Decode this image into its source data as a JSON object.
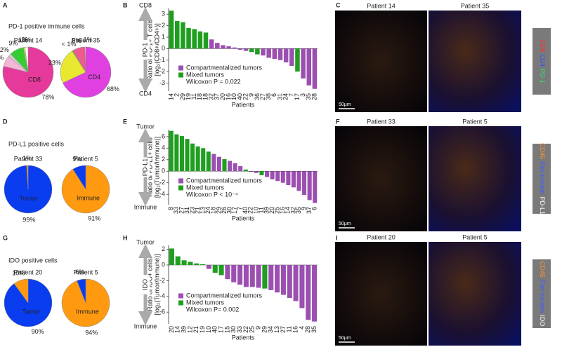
{
  "figure": {
    "panels": [
      "A",
      "B",
      "C",
      "D",
      "E",
      "F",
      "G",
      "H",
      "I"
    ],
    "row_titles": [
      "PD-1 positive immune cells",
      "PD-L1 positive cells",
      "IDO positive cells"
    ]
  },
  "images": [
    {
      "titles": [
        "Patient 14",
        "Patient 35"
      ],
      "scale": "50μm",
      "stains": [
        {
          "text": "CD8",
          "color": "#ff3030"
        },
        {
          "text": "CD4",
          "color": "#3050ff"
        },
        {
          "text": "PD-1",
          "color": "#30e070"
        }
      ]
    },
    {
      "titles": [
        "Patient 33",
        "Patient 5"
      ],
      "scale": "50μm",
      "stains": [
        {
          "text": "CD45",
          "color": "#ff9030"
        },
        {
          "text": "Pan-Keratin",
          "color": "#4060ff"
        },
        {
          "text": "PD-L1",
          "color": "#ffffff"
        }
      ]
    },
    {
      "titles": [
        "Patient 20",
        "Patient 5"
      ],
      "scale": "50μm",
      "stains": [
        {
          "text": "CD45",
          "color": "#ff9030"
        },
        {
          "text": "Pan-Keratin",
          "color": "#4060ff"
        },
        {
          "text": "IDO",
          "color": "#ffffff"
        }
      ]
    }
  ],
  "chart_data": [
    {
      "type": "pie",
      "title": "Patient 14",
      "categories": [
        "CD8",
        null,
        null,
        null,
        null,
        null
      ],
      "values": [
        78,
        7,
        2,
        9,
        1,
        2
      ],
      "value_labels": [
        "78%",
        "7%",
        "2%",
        "9%",
        "1%",
        "2%"
      ],
      "colors": [
        "#e6399b",
        "#f4b6d4",
        "#cfcfcf",
        "#33cc33",
        "#e8e830",
        "#ffffff"
      ]
    },
    {
      "type": "pie",
      "title": "Patient 35",
      "categories": [
        "CD4",
        null,
        null,
        null,
        null
      ],
      "values": [
        68,
        23,
        0.5,
        8,
        0.5
      ],
      "value_labels": [
        "68%",
        "23%",
        "< 1%",
        "8%",
        "< 1%"
      ],
      "colors": [
        "#e040e0",
        "#e8e830",
        "#33cc33",
        "#f05a90",
        "#ffffff"
      ]
    },
    {
      "type": "bar",
      "arrow_labels": [
        "CD8",
        "PD-1",
        "CD4"
      ],
      "ylabel": [
        "Ratio of PD-1+ T cells",
        "[log₂(CD8+/CD4+)]"
      ],
      "xlabel": "Patients",
      "annotation": "Wilcoxon P = 0.022",
      "categories": [
        "14",
        "2",
        "29",
        "19",
        "11",
        "18",
        "18",
        "32",
        "37",
        "20",
        "16",
        "10",
        "40",
        "22",
        "9",
        "36",
        "27",
        "38",
        "6",
        "31",
        "24",
        "7",
        "17",
        "3",
        "35",
        "28"
      ],
      "series": [
        {
          "name": "Compartmentalized tumors",
          "color": "#9b4fb0",
          "values": [
            null,
            null,
            null,
            null,
            null,
            null,
            null,
            0.8,
            0.5,
            0.3,
            0.2,
            0.1,
            -0.1,
            -0.2,
            null,
            null,
            -0.6,
            -0.8,
            -0.9,
            -1.0,
            -1.2,
            -1.5,
            null,
            -2.6,
            -3.2,
            -3.5
          ]
        },
        {
          "name": "Mixed tumors",
          "color": "#1f9e1f",
          "values": [
            3.3,
            2.4,
            2.3,
            1.8,
            1.7,
            1.5,
            1.4,
            null,
            null,
            null,
            null,
            null,
            null,
            null,
            -0.3,
            -0.5,
            null,
            null,
            null,
            null,
            null,
            null,
            -2.0,
            null,
            null,
            null
          ]
        }
      ],
      "ylim": [
        -3.7,
        3.5
      ],
      "yticks": [
        -3,
        -2,
        -1,
        0,
        1,
        2,
        3
      ]
    },
    {
      "type": "pie",
      "title": "Patient 33",
      "categories": [
        "Tumor",
        null
      ],
      "values": [
        99,
        1
      ],
      "value_labels": [
        "99%",
        "1%"
      ],
      "colors": [
        "#0a3cf0",
        "#ff9a10"
      ]
    },
    {
      "type": "pie",
      "title": "Patient 5",
      "categories": [
        "Immune",
        null
      ],
      "values": [
        91,
        9
      ],
      "value_labels": [
        "91%",
        "9%"
      ],
      "colors": [
        "#ff9a10",
        "#0a3cf0"
      ]
    },
    {
      "type": "bar",
      "arrow_labels": [
        "Tumor",
        "PD-L1",
        "Immune"
      ],
      "ylabel": [
        "Ratio of PD-L1+ cells",
        "[log₂(Tumor/Immune)]"
      ],
      "xlabel": "Patients",
      "annotation": "Wilcoxon P < 10⁻⁴",
      "categories": [
        "8",
        "33",
        "27",
        "31",
        "23",
        "21",
        "13",
        "24",
        "18",
        "29",
        "26",
        "30",
        "17",
        "7",
        "40",
        "22",
        "10",
        "11",
        "39",
        "20",
        "25",
        "16",
        "14",
        "32",
        "35",
        "9",
        "37",
        "6"
      ],
      "series": [
        {
          "name": "Compartmentalized tumors",
          "color": "#9b4fb0",
          "values": [
            null,
            null,
            null,
            null,
            null,
            null,
            null,
            null,
            3.0,
            2.5,
            null,
            1.8,
            1.4,
            0.9,
            null,
            -0.1,
            -0.3,
            null,
            -1.0,
            -1.4,
            -1.7,
            -2.0,
            -2.4,
            -2.8,
            -3.4,
            -4.1,
            -5.0,
            -5.5
          ]
        },
        {
          "name": "Mixed tumors",
          "color": "#1f9e1f",
          "values": [
            7,
            6.4,
            6.1,
            5.6,
            4.8,
            4.3,
            4.0,
            3.4,
            null,
            null,
            2.1,
            null,
            null,
            null,
            0.3,
            null,
            null,
            -0.7,
            null,
            null,
            null,
            null,
            null,
            null,
            null,
            null,
            null,
            null
          ]
        }
      ],
      "ylim": [
        -5.8,
        7.2
      ],
      "yticks": [
        -4,
        -2,
        0,
        2,
        4,
        6
      ]
    },
    {
      "type": "pie",
      "title": "Patient 20",
      "categories": [
        "Tumor",
        null
      ],
      "values": [
        90,
        10
      ],
      "value_labels": [
        "90%",
        "10%"
      ],
      "colors": [
        "#0a3cf0",
        "#ff9a10"
      ]
    },
    {
      "type": "pie",
      "title": "Patient 5",
      "categories": [
        "Immune",
        null
      ],
      "values": [
        94,
        6
      ],
      "value_labels": [
        "94%",
        "6%"
      ],
      "colors": [
        "#ff9a10",
        "#0a3cf0"
      ]
    },
    {
      "type": "bar",
      "arrow_labels": [
        "Tumor",
        "IDO",
        "Immune"
      ],
      "ylabel": [
        "Ratio of IDO+ cells",
        "[log₂(Tumor/Immune)]"
      ],
      "xlabel": "Patients",
      "annotation": "Wilcoxon P= 0.002",
      "categories": [
        "20",
        "14",
        "39",
        "12",
        "21",
        "19",
        "10",
        "40",
        "17",
        "15",
        "30",
        "33",
        "22",
        "25",
        "9",
        "29",
        "34",
        "13",
        "27",
        "11",
        "16",
        "4",
        "28",
        "35"
      ],
      "series": [
        {
          "name": "Compartmentalized tumors",
          "color": "#9b4fb0",
          "values": [
            null,
            null,
            null,
            null,
            null,
            null,
            -0.5,
            null,
            null,
            -1.8,
            -2.2,
            -2.5,
            -2.8,
            -2.8,
            -2.9,
            null,
            -3.2,
            -3.5,
            -3.8,
            -4.2,
            -4.6,
            -5.5,
            -7,
            -7.2
          ]
        },
        {
          "name": "Mixed tumors",
          "color": "#1f9e1f",
          "values": [
            2.1,
            1.1,
            0.6,
            0.4,
            0.2,
            0.1,
            null,
            -1.0,
            -1.3,
            null,
            null,
            null,
            null,
            null,
            null,
            -3.0,
            null,
            null,
            null,
            null,
            null,
            null,
            null,
            null
          ]
        }
      ],
      "ylim": [
        -7.5,
        2.5
      ],
      "yticks": [
        -6,
        -4,
        -2,
        0,
        2
      ]
    }
  ]
}
